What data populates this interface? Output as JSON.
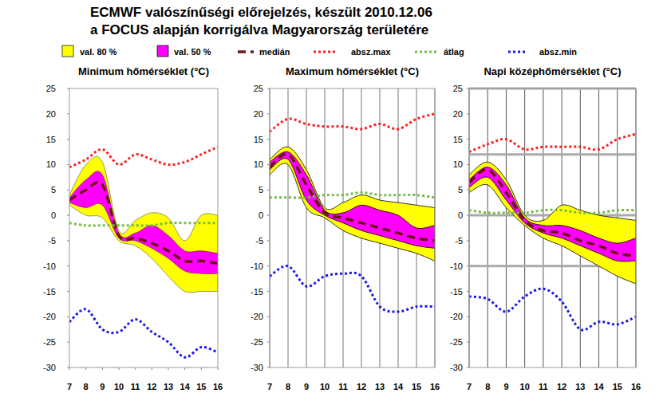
{
  "header": {
    "title_lines": [
      "ECMWF valószínűségi előrejelzés, készült 2010.12.06",
      "a FOCUS alapján korrigálva Magyarország területére"
    ]
  },
  "chart_data": [
    {
      "type": "line",
      "title": "Minimum hőmérséklet (°C)",
      "grid": false,
      "x": [
        7,
        8,
        9,
        10,
        11,
        12,
        13,
        14,
        15,
        16
      ],
      "xlim": [
        7,
        16
      ],
      "xticks": [
        7,
        8,
        9,
        10,
        11,
        12,
        13,
        14,
        15,
        16
      ],
      "ylim": [
        -30,
        25
      ],
      "yticks": [
        -30,
        -25,
        -20,
        -15,
        -10,
        -5,
        0,
        5,
        10,
        15,
        20,
        25
      ],
      "series": [
        {
          "name": "val. 80 %",
          "type": "band",
          "color": "#ffff00",
          "lower": [
            2,
            0,
            -0.5,
            -5,
            -6,
            -8.5,
            -12,
            -15,
            -15,
            -15
          ],
          "upper": [
            4,
            10,
            10.5,
            -3,
            -1,
            0.5,
            -0.5,
            -5,
            0,
            0
          ]
        },
        {
          "name": "val. 50 %",
          "type": "band",
          "color": "#ff00ff",
          "lower": [
            2.5,
            1.5,
            2,
            -4.5,
            -5,
            -6.5,
            -8.5,
            -11,
            -11.5,
            -11.5
          ],
          "upper": [
            3.5,
            7,
            8,
            -3.5,
            -3.5,
            -2,
            -4,
            -7,
            -7,
            -7.5
          ]
        },
        {
          "name": "medián",
          "type": "line",
          "line_style": "dashed",
          "color": "#6e1414",
          "values": [
            3,
            5,
            6,
            -4,
            -4.5,
            -5.5,
            -7,
            -9,
            -9,
            -9.5
          ]
        },
        {
          "name": "absz.max",
          "type": "line",
          "line_style": "dotted",
          "color": "#ff2020",
          "values": [
            9.5,
            11,
            13,
            10,
            12,
            11,
            10,
            10.5,
            12,
            13.5
          ]
        },
        {
          "name": "átlag",
          "type": "line",
          "line_style": "dotted",
          "color": "#77bb44",
          "values": [
            -1.5,
            -2,
            -2,
            -2,
            -2,
            -2,
            -1.5,
            -1.5,
            -1.5,
            -1.5
          ]
        },
        {
          "name": "absz.min",
          "type": "line",
          "line_style": "dotted",
          "color": "#1a1aee",
          "values": [
            -21,
            -18.5,
            -22.5,
            -23,
            -20.5,
            -23,
            -25,
            -28,
            -26,
            -27
          ]
        }
      ]
    },
    {
      "type": "line",
      "title": "Maximum hőmérséklet (°C)",
      "grid": true,
      "x": [
        7,
        8,
        9,
        10,
        11,
        12,
        13,
        14,
        15,
        16
      ],
      "xlim": [
        7,
        16
      ],
      "xticks": [
        7,
        8,
        9,
        10,
        11,
        12,
        13,
        14,
        15,
        16
      ],
      "ylim": [
        -30,
        25
      ],
      "yticks": [
        -30,
        -25,
        -20,
        -15,
        -10,
        -5,
        0,
        5,
        10,
        15,
        20,
        25
      ],
      "series": [
        {
          "name": "val. 80 %",
          "type": "band",
          "color": "#ffff00",
          "lower": [
            8,
            10,
            1.5,
            -0.5,
            -3,
            -4.5,
            -5.5,
            -6.5,
            -7.5,
            -9
          ],
          "upper": [
            11,
            13.5,
            9,
            1.5,
            2.5,
            4,
            3,
            2.5,
            2,
            1.5
          ]
        },
        {
          "name": "val. 50 %",
          "type": "band",
          "color": "#ff00ff",
          "lower": [
            9,
            11,
            3,
            0,
            -1.5,
            -3,
            -4,
            -5,
            -6,
            -6.5
          ],
          "upper": [
            10.5,
            12.5,
            8,
            1,
            0.5,
            2,
            1,
            0,
            -2.5,
            -2
          ]
        },
        {
          "name": "medián",
          "type": "line",
          "line_style": "dashed",
          "color": "#6e1414",
          "values": [
            9.5,
            12,
            6,
            0.5,
            -0.5,
            -1.5,
            -2.5,
            -3.5,
            -4.5,
            -5
          ]
        },
        {
          "name": "absz.max",
          "type": "line",
          "line_style": "dotted",
          "color": "#ff2020",
          "values": [
            16.5,
            19,
            18,
            17.5,
            17.5,
            17,
            18,
            17,
            19,
            20
          ]
        },
        {
          "name": "átlag",
          "type": "line",
          "line_style": "dotted",
          "color": "#77bb44",
          "values": [
            3.5,
            3.5,
            3.5,
            4,
            4,
            4.5,
            4,
            4,
            4,
            3.5
          ]
        },
        {
          "name": "absz.min",
          "type": "line",
          "line_style": "dotted",
          "color": "#1a1aee",
          "values": [
            -12,
            -10,
            -14,
            -12,
            -11.5,
            -12,
            -18,
            -19,
            -18,
            -18
          ]
        }
      ]
    },
    {
      "type": "line",
      "title": "Napi középhőmérséklet (°C)",
      "grid": true,
      "x": [
        7,
        8,
        9,
        10,
        11,
        12,
        13,
        14,
        15,
        16
      ],
      "xlim": [
        7,
        16
      ],
      "xticks": [
        7,
        8,
        9,
        10,
        11,
        12,
        13,
        14,
        15,
        16
      ],
      "ylim": [
        -30,
        25
      ],
      "yticks": [
        -30,
        -25,
        -20,
        -15,
        -10,
        -5,
        0,
        5,
        10,
        15,
        20,
        25
      ],
      "reference_lines": [
        25,
        12,
        0,
        -10
      ],
      "series": [
        {
          "name": "val. 80 %",
          "type": "band",
          "color": "#ffff00",
          "lower": [
            4.5,
            6,
            1.5,
            -2,
            -4.5,
            -6,
            -8,
            -10,
            -12,
            -13.5
          ],
          "upper": [
            8,
            10.5,
            7,
            0,
            -1,
            2,
            1,
            0,
            -0.5,
            -1
          ]
        },
        {
          "name": "val. 50 %",
          "type": "band",
          "color": "#ff00ff",
          "lower": [
            5.5,
            7.5,
            3,
            -1.5,
            -3.5,
            -4.5,
            -6,
            -7.5,
            -9,
            -9
          ],
          "upper": [
            7,
            9.5,
            6,
            -0.5,
            -2,
            -2,
            -3,
            -4.5,
            -5.5,
            -4.5
          ]
        },
        {
          "name": "medián",
          "type": "line",
          "line_style": "dashed",
          "color": "#6e1414",
          "values": [
            6.5,
            9,
            4.5,
            -1,
            -3,
            -3.5,
            -5,
            -6,
            -7.5,
            -8
          ]
        },
        {
          "name": "absz.max",
          "type": "line",
          "line_style": "dotted",
          "color": "#ff2020",
          "values": [
            12.5,
            14,
            15,
            13,
            13.5,
            13.5,
            13.5,
            13,
            15,
            16
          ]
        },
        {
          "name": "átlag",
          "type": "line",
          "line_style": "dotted",
          "color": "#77bb44",
          "values": [
            1,
            0.5,
            0.5,
            0.5,
            1,
            1,
            0.5,
            0.5,
            1,
            1
          ]
        },
        {
          "name": "absz.min",
          "type": "line",
          "line_style": "dotted",
          "color": "#1a1aee",
          "values": [
            -16,
            -16.5,
            -19,
            -16,
            -14.5,
            -17,
            -22.5,
            -21,
            -21.5,
            -20
          ]
        }
      ]
    }
  ]
}
